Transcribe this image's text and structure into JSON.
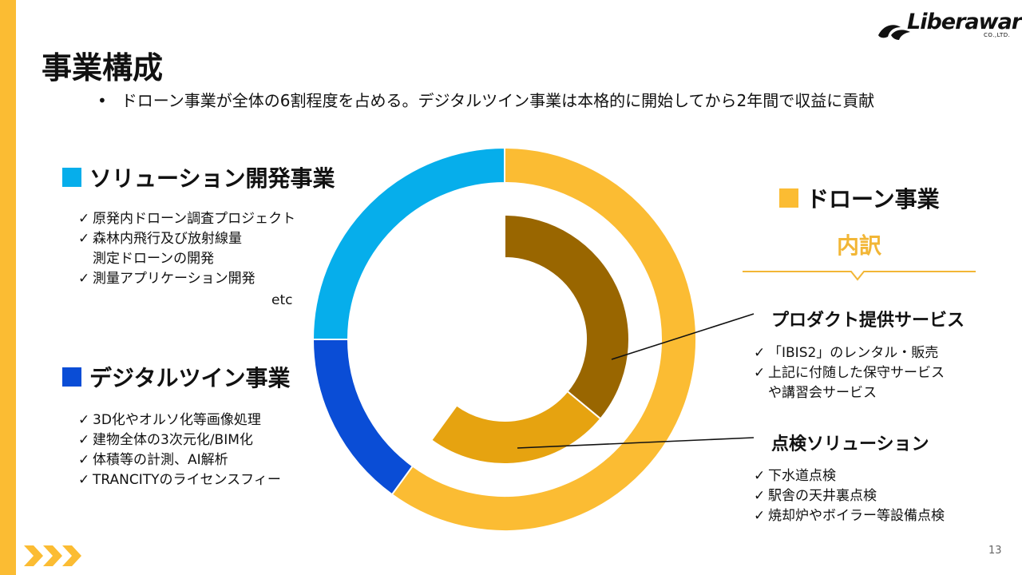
{
  "page": {
    "title": "事業構成",
    "bullet": "ドローン事業が全体の6割程度を占める。デジタルツイン事業は本格的に開始してから2年間で収益に貢献",
    "page_number": "13",
    "accent_color": "#FBBC33"
  },
  "logo": {
    "word": "Liberaware",
    "sub": "CO.,LTD."
  },
  "chart_data": {
    "type": "pie",
    "variant": "nested-donut",
    "outer_ring": {
      "slices": [
        {
          "name": "ドローン事業",
          "value": 60,
          "color": "#FBBC33"
        },
        {
          "name": "デジタルツイン事業",
          "value": 15,
          "color": "#0A4DD6"
        },
        {
          "name": "ソリューション開発事業",
          "value": 25,
          "color": "#06AEEB"
        }
      ]
    },
    "inner_ring": {
      "slices": [
        {
          "name": "プロダクト提供サービス",
          "value": 36,
          "color": "#996600"
        },
        {
          "name": "点検ソリューション",
          "value": 24,
          "color": "#E6A310"
        }
      ]
    }
  },
  "sections": {
    "solution": {
      "title": "ソリューション開発事業",
      "color": "#06AEEB",
      "items": [
        {
          "check": "✓",
          "text": "原発内ドローン調査プロジェクト"
        },
        {
          "check": "✓",
          "text": "森林内飛行及び放射線量"
        },
        {
          "check": "",
          "text": "測定ドローンの開発"
        },
        {
          "check": "✓",
          "text": "測量アプリケーション開発"
        }
      ],
      "etc": "etc"
    },
    "digital_twin": {
      "title": "デジタルツイン事業",
      "color": "#0A4DD6",
      "items": [
        {
          "check": "✓",
          "text": "3D化やオルソ化等画像処理"
        },
        {
          "check": "✓",
          "text": "建物全体の3次元化/BIM化"
        },
        {
          "check": "✓",
          "text": "体積等の計測、AI解析"
        },
        {
          "check": "✓",
          "text": "TRANCITYのライセンスフィー"
        }
      ]
    },
    "drone": {
      "title": "ドローン事業",
      "color": "#FBBC33",
      "breakdown_label": "内訳",
      "product": {
        "title": "プロダクト提供サービス",
        "items": [
          {
            "check": "✓",
            "text": "「IBIS2」のレンタル・販売"
          },
          {
            "check": "✓",
            "text": "上記に付随した保守サービス"
          },
          {
            "check": "",
            "text": "や講習会サービス"
          }
        ]
      },
      "inspection": {
        "title": "点検ソリューション",
        "items": [
          {
            "check": "✓",
            "text": "下水道点検"
          },
          {
            "check": "✓",
            "text": "駅舎の天井裏点検"
          },
          {
            "check": "✓",
            "text": "焼却炉やボイラー等設備点検"
          }
        ]
      }
    }
  }
}
